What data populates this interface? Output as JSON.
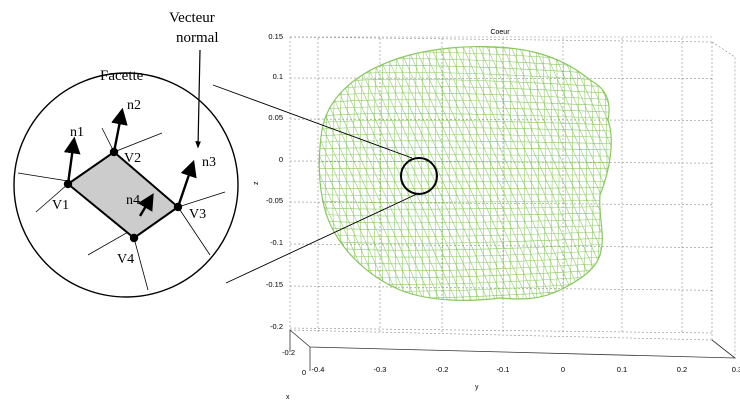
{
  "plot": {
    "title": "Coeur",
    "z_ticks": [
      "0.15",
      "0.1",
      "0.05",
      "0",
      "-0.05",
      "-0.1",
      "-0.15",
      "-0.2"
    ],
    "y_ticks": [
      "-0.4",
      "-0.3",
      "-0.2",
      "-0.1",
      "0",
      "0.1",
      "0.2",
      "0.3"
    ],
    "x_ticks": [
      "-0.2",
      "0"
    ],
    "z_axis_label": "z",
    "y_axis_label": "y",
    "x_axis_label": "x",
    "mesh_color": "#7cc34f"
  },
  "diagram": {
    "facette_label": "Facette",
    "normal_label_line1": "Vecteur",
    "normal_label_line2": "normal",
    "vertices": [
      "V1",
      "V2",
      "V3",
      "V4"
    ],
    "normals": [
      "n1",
      "n2",
      "n3",
      "n4"
    ]
  }
}
